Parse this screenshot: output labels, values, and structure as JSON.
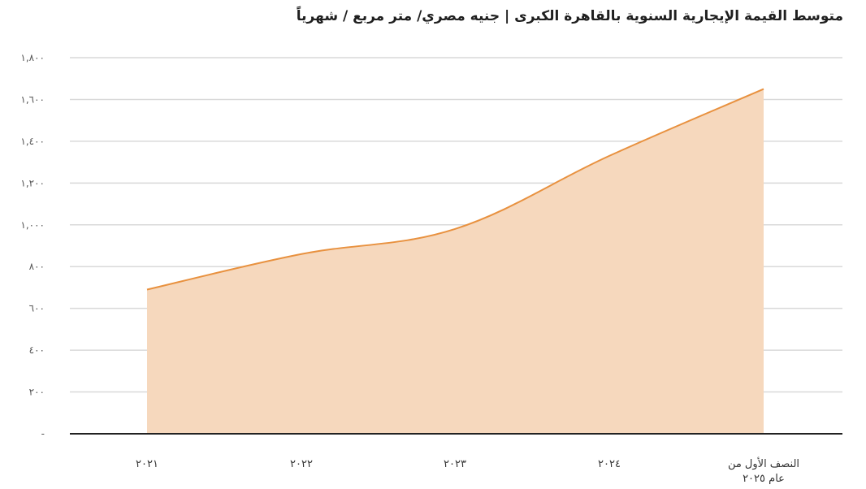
{
  "chart_data": {
    "type": "area",
    "title": "متوسط القيمة الإيجارية السنوية بالقاهرة الكبرى | جنيه مصري/ متر مربع / شهرياً",
    "categories": [
      "٢٠٢١",
      "٢٠٢٢",
      "٢٠٢٣",
      "٢٠٢٤",
      "النصف الأول من عام ٢٠٢٥"
    ],
    "category_lines": [
      [
        "٢٠٢١"
      ],
      [
        "٢٠٢٢"
      ],
      [
        "٢٠٢٣"
      ],
      [
        "٢٠٢٤"
      ],
      [
        "النصف الأول من",
        "عام ٢٠٢٥"
      ]
    ],
    "values": [
      690,
      860,
      980,
      1330,
      1650
    ],
    "ylim": [
      0,
      1800
    ],
    "yticks": [
      0,
      200,
      400,
      600,
      800,
      1000,
      1200,
      1400,
      1600,
      1800
    ],
    "ytick_labels": [
      "-",
      "٢٠٠",
      "٤٠٠",
      "٦٠٠",
      "٨٠٠",
      "١,٠٠٠",
      "١,٢٠٠",
      "١,٤٠٠",
      "١,٦٠٠",
      "١,٨٠٠"
    ],
    "grid": true,
    "line_color": "#E8913F",
    "fill_color": "#F6D8BD",
    "grid_color": "#D9D9D9",
    "axis_color": "#222222"
  }
}
